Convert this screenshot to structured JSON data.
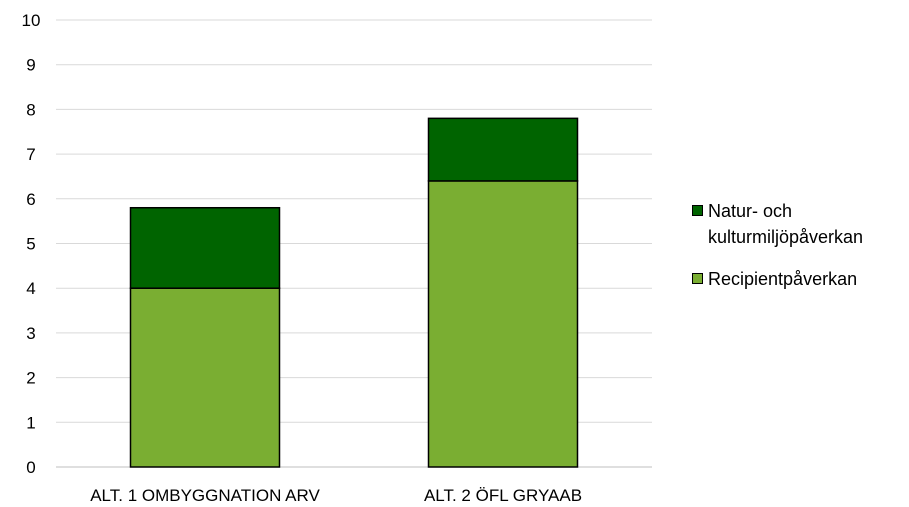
{
  "chart_data": {
    "type": "bar",
    "stacked": true,
    "categories": [
      "ALT. 1 OMBYGGNATION ARV",
      "ALT. 2 ÖFL GRYAAB"
    ],
    "series": [
      {
        "name": "Recipientpåverkan",
        "values": [
          4.0,
          6.4
        ],
        "color": "#7aae32"
      },
      {
        "name": "Natur- och kulturmiljöpåverkan",
        "values": [
          1.8,
          1.4
        ],
        "color": "#006400"
      }
    ],
    "ylim": [
      0,
      10
    ],
    "yticks": [
      "0",
      "1",
      "2",
      "3",
      "4",
      "5",
      "6",
      "7",
      "8",
      "9",
      "10"
    ],
    "grid": true,
    "legend_position": "right",
    "legend": [
      {
        "line1": "Natur- och",
        "line2": "kulturmiljöpåverkan",
        "color": "#006400"
      },
      {
        "line1": "Recipientpåverkan",
        "color": "#7aae32"
      }
    ]
  }
}
